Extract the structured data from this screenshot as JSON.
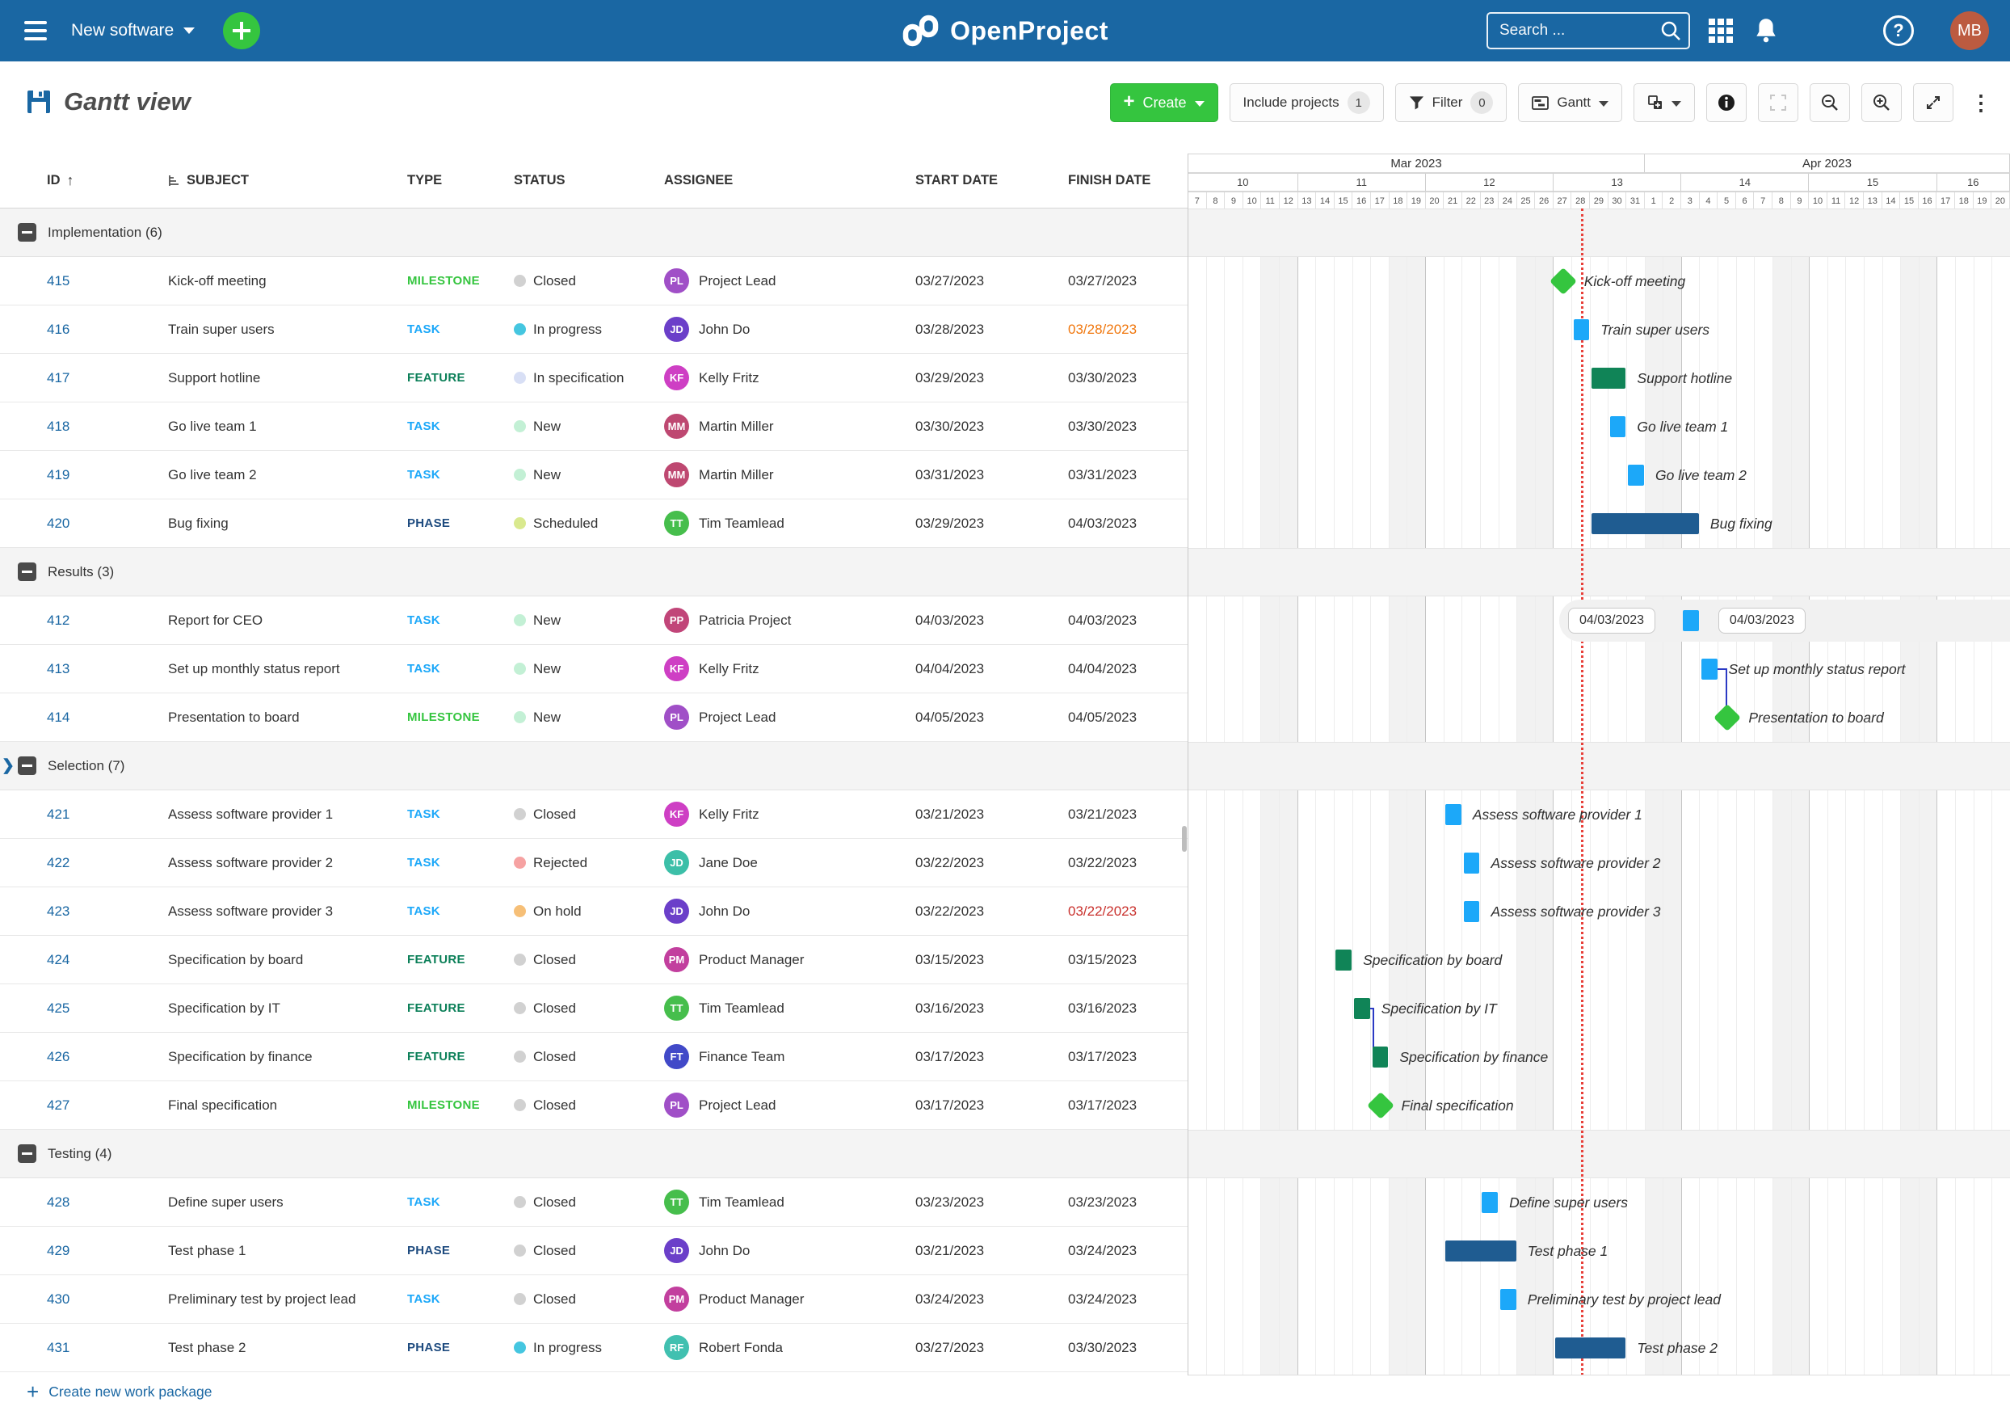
{
  "topbar": {
    "project_name": "New software",
    "logo_text": "OpenProject",
    "search_placeholder": "Search ...",
    "avatar_initials": "MB",
    "colors": {
      "bar_bg": "#1A67A3",
      "add_green": "#35C53F",
      "avatar_bg": "#BC5B40"
    }
  },
  "toolbar": {
    "title": "Gantt view",
    "create_label": "Create",
    "include_projects_label": "Include projects",
    "include_projects_count": "1",
    "filter_label": "Filter",
    "filter_count": "0",
    "gantt_label": "Gantt"
  },
  "table": {
    "headers": {
      "id": "ID",
      "subject": "SUBJECT",
      "type": "TYPE",
      "status": "STATUS",
      "assignee": "ASSIGNEE",
      "start": "START DATE",
      "finish": "FINISH DATE"
    },
    "groups": [
      {
        "name": "Implementation",
        "count": 6,
        "rows": [
          {
            "id": "415",
            "subject": "Kick-off meeting",
            "type": "MILESTONE",
            "type_key": "milestone",
            "status": "Closed",
            "assignee_initials": "PL",
            "assignee_name": "Project Lead",
            "assignee_color": "#A04FC7",
            "start": "03/27/2023",
            "finish": "03/27/2023"
          },
          {
            "id": "416",
            "subject": "Train super users",
            "type": "TASK",
            "type_key": "task",
            "status": "In progress",
            "assignee_initials": "JD",
            "assignee_name": "John Do",
            "assignee_color": "#6B3FC9",
            "start": "03/28/2023",
            "finish": "03/28/2023",
            "finish_color": "#F0760C"
          },
          {
            "id": "417",
            "subject": "Support hotline",
            "type": "FEATURE",
            "type_key": "feature",
            "status": "In specification",
            "assignee_initials": "KF",
            "assignee_name": "Kelly Fritz",
            "assignee_color": "#CE3FC4",
            "start": "03/29/2023",
            "finish": "03/30/2023"
          },
          {
            "id": "418",
            "subject": "Go live team 1",
            "type": "TASK",
            "type_key": "task",
            "status": "New",
            "assignee_initials": "MM",
            "assignee_name": "Martin Miller",
            "assignee_color": "#BE4871",
            "start": "03/30/2023",
            "finish": "03/30/2023"
          },
          {
            "id": "419",
            "subject": "Go live team 2",
            "type": "TASK",
            "type_key": "task",
            "status": "New",
            "assignee_initials": "MM",
            "assignee_name": "Martin Miller",
            "assignee_color": "#BE4871",
            "start": "03/31/2023",
            "finish": "03/31/2023"
          },
          {
            "id": "420",
            "subject": "Bug fixing",
            "type": "PHASE",
            "type_key": "phase",
            "status": "Scheduled",
            "assignee_initials": "TT",
            "assignee_name": "Tim Teamlead",
            "assignee_color": "#46BE4C",
            "start": "03/29/2023",
            "finish": "04/03/2023"
          }
        ]
      },
      {
        "name": "Results",
        "count": 3,
        "rows": [
          {
            "id": "412",
            "subject": "Report for CEO",
            "type": "TASK",
            "type_key": "task",
            "status": "New",
            "assignee_initials": "PP",
            "assignee_name": "Patricia Project",
            "assignee_color": "#C14579",
            "start": "04/03/2023",
            "finish": "04/03/2023"
          },
          {
            "id": "413",
            "subject": "Set up monthly status report",
            "type": "TASK",
            "type_key": "task",
            "status": "New",
            "assignee_initials": "KF",
            "assignee_name": "Kelly Fritz",
            "assignee_color": "#CE3FC4",
            "start": "04/04/2023",
            "finish": "04/04/2023"
          },
          {
            "id": "414",
            "subject": "Presentation to board",
            "type": "MILESTONE",
            "type_key": "milestone",
            "status": "New",
            "assignee_initials": "PL",
            "assignee_name": "Project Lead",
            "assignee_color": "#A04FC7",
            "start": "04/05/2023",
            "finish": "04/05/2023"
          }
        ]
      },
      {
        "name": "Selection",
        "count": 7,
        "chevron": true,
        "rows": [
          {
            "id": "421",
            "subject": "Assess software provider 1",
            "type": "TASK",
            "type_key": "task",
            "status": "Closed",
            "assignee_initials": "KF",
            "assignee_name": "Kelly Fritz",
            "assignee_color": "#CE3FC4",
            "start": "03/21/2023",
            "finish": "03/21/2023"
          },
          {
            "id": "422",
            "subject": "Assess software provider 2",
            "type": "TASK",
            "type_key": "task",
            "status": "Rejected",
            "assignee_initials": "JD",
            "assignee_name": "Jane Doe",
            "assignee_color": "#3CBFA8",
            "start": "03/22/2023",
            "finish": "03/22/2023"
          },
          {
            "id": "423",
            "subject": "Assess software provider 3",
            "type": "TASK",
            "type_key": "task",
            "status": "On hold",
            "assignee_initials": "JD",
            "assignee_name": "John Do",
            "assignee_color": "#6B3FC9",
            "start": "03/22/2023",
            "finish": "03/22/2023",
            "finish_color": "#C9302C"
          },
          {
            "id": "424",
            "subject": "Specification by board",
            "type": "FEATURE",
            "type_key": "feature",
            "status": "Closed",
            "assignee_initials": "PM",
            "assignee_name": "Product Manager",
            "assignee_color": "#C23F9E",
            "start": "03/15/2023",
            "finish": "03/15/2023"
          },
          {
            "id": "425",
            "subject": "Specification by IT",
            "type": "FEATURE",
            "type_key": "feature",
            "status": "Closed",
            "assignee_initials": "TT",
            "assignee_name": "Tim Teamlead",
            "assignee_color": "#46BE4C",
            "start": "03/16/2023",
            "finish": "03/16/2023"
          },
          {
            "id": "426",
            "subject": "Specification by finance",
            "type": "FEATURE",
            "type_key": "feature",
            "status": "Closed",
            "assignee_initials": "FT",
            "assignee_name": "Finance Team",
            "assignee_color": "#4149C8",
            "start": "03/17/2023",
            "finish": "03/17/2023"
          },
          {
            "id": "427",
            "subject": "Final specification",
            "type": "MILESTONE",
            "type_key": "milestone",
            "status": "Closed",
            "assignee_initials": "PL",
            "assignee_name": "Project Lead",
            "assignee_color": "#A04FC7",
            "start": "03/17/2023",
            "finish": "03/17/2023"
          }
        ]
      },
      {
        "name": "Testing",
        "count": 4,
        "rows": [
          {
            "id": "428",
            "subject": "Define super users",
            "type": "TASK",
            "type_key": "task",
            "status": "Closed",
            "assignee_initials": "TT",
            "assignee_name": "Tim Teamlead",
            "assignee_color": "#46BE4C",
            "start": "03/23/2023",
            "finish": "03/23/2023"
          },
          {
            "id": "429",
            "subject": "Test phase 1",
            "type": "PHASE",
            "type_key": "phase",
            "status": "Closed",
            "assignee_initials": "JD",
            "assignee_name": "John Do",
            "assignee_color": "#6B3FC9",
            "start": "03/21/2023",
            "finish": "03/24/2023"
          },
          {
            "id": "430",
            "subject": "Preliminary test by project lead",
            "type": "TASK",
            "type_key": "task",
            "status": "Closed",
            "assignee_initials": "PM",
            "assignee_name": "Product Manager",
            "assignee_color": "#C23F9E",
            "start": "03/24/2023",
            "finish": "03/24/2023"
          },
          {
            "id": "431",
            "subject": "Test phase 2",
            "type": "PHASE",
            "type_key": "phase",
            "status": "In progress",
            "assignee_initials": "RF",
            "assignee_name": "Robert Fonda",
            "assignee_color": "#41C0B0",
            "start": "03/27/2023",
            "finish": "03/30/2023"
          }
        ]
      }
    ]
  },
  "type_colors": {
    "task": "#1CA8F9",
    "milestone": "#35C53F",
    "feature": "#0B7F58",
    "phase": "#1E4B7F"
  },
  "bar_colors": {
    "task": "#1CA8F9",
    "milestone": "#35C53F",
    "feature": "#108457",
    "phase": "#1F5C91"
  },
  "status_colors": {
    "Closed": "#D1D1D1",
    "In progress": "#45C6E0",
    "In specification": "#D8DFF5",
    "New": "#C3F0D5",
    "Scheduled": "#D9E98E",
    "Rejected": "#F6A2A2",
    "On hold": "#F6BF77"
  },
  "gantt": {
    "months": [
      {
        "label": "Mar 2023",
        "days": 25
      },
      {
        "label": "Apr 2023",
        "days": 20
      }
    ],
    "weeks": [
      {
        "label": "10",
        "days": 6
      },
      {
        "label": "11",
        "days": 7
      },
      {
        "label": "12",
        "days": 7
      },
      {
        "label": "13",
        "days": 7
      },
      {
        "label": "14",
        "days": 7
      },
      {
        "label": "15",
        "days": 7
      },
      {
        "label": "16",
        "days": 4
      }
    ],
    "day_numbers": [
      7,
      8,
      9,
      10,
      11,
      12,
      13,
      14,
      15,
      16,
      17,
      18,
      19,
      20,
      21,
      22,
      23,
      24,
      25,
      26,
      27,
      28,
      29,
      30,
      31,
      1,
      2,
      3,
      4,
      5,
      6,
      7,
      8,
      9,
      10,
      11,
      12,
      13,
      14,
      15,
      16,
      17,
      18,
      19,
      20
    ],
    "weekend_day_indices": [
      4,
      5,
      11,
      12,
      18,
      19,
      25,
      26,
      32,
      33,
      39,
      40
    ],
    "sunday_day_indices": [
      5,
      12,
      19,
      26,
      33,
      40
    ],
    "today_day_index": 21.5,
    "today_color": "#E8403A",
    "relation_color": "#2B3AC4",
    "bars": [
      {
        "row": 1,
        "kind": "milestone",
        "day": 20,
        "label": "Kick-off meeting"
      },
      {
        "row": 2,
        "kind": "task",
        "day": 21,
        "len": 1,
        "label": "Train super users"
      },
      {
        "row": 3,
        "kind": "feature",
        "day": 22,
        "len": 2,
        "label": "Support hotline"
      },
      {
        "row": 4,
        "kind": "task",
        "day": 23,
        "len": 1,
        "label": "Go live team 1"
      },
      {
        "row": 5,
        "kind": "task",
        "day": 24,
        "len": 1,
        "label": "Go live team 2"
      },
      {
        "row": 6,
        "kind": "phase",
        "day": 22,
        "len": 6,
        "label": "Bug fixing"
      },
      {
        "row": 8,
        "kind": "task",
        "day": 27,
        "len": 1,
        "label": "",
        "chips": [
          "04/03/2023",
          "04/03/2023"
        ]
      },
      {
        "row": 9,
        "kind": "task",
        "day": 28,
        "len": 1,
        "label": "Set up monthly status report",
        "rel": "milestone",
        "rel_day": 29
      },
      {
        "row": 10,
        "kind": "milestone",
        "day": 29,
        "label": "Presentation to board"
      },
      {
        "row": 12,
        "kind": "task",
        "day": 14,
        "len": 1,
        "label": "Assess software provider 1"
      },
      {
        "row": 13,
        "kind": "task",
        "day": 15,
        "len": 1,
        "label": "Assess software provider 2"
      },
      {
        "row": 14,
        "kind": "task",
        "day": 15,
        "len": 1,
        "label": "Assess software provider 3"
      },
      {
        "row": 15,
        "kind": "feature",
        "day": 8,
        "len": 1,
        "label": "Specification by board"
      },
      {
        "row": 16,
        "kind": "feature",
        "day": 9,
        "len": 1,
        "label": "Specification by IT",
        "rel": "bar",
        "rel_day": 10
      },
      {
        "row": 17,
        "kind": "feature",
        "day": 10,
        "len": 1,
        "label": "Specification by finance"
      },
      {
        "row": 18,
        "kind": "milestone",
        "day": 10,
        "label": "Final specification"
      },
      {
        "row": 20,
        "kind": "task",
        "day": 16,
        "len": 1,
        "label": "Define super users"
      },
      {
        "row": 21,
        "kind": "phase",
        "day": 14,
        "len": 4,
        "label": "Test phase 1"
      },
      {
        "row": 22,
        "kind": "task",
        "day": 17,
        "len": 1,
        "label": "Preliminary test by project lead"
      },
      {
        "row": 23,
        "kind": "phase",
        "day": 20,
        "len": 4,
        "label": "Test phase 2"
      }
    ]
  },
  "footer": {
    "create_work_package": "Create new work package"
  }
}
